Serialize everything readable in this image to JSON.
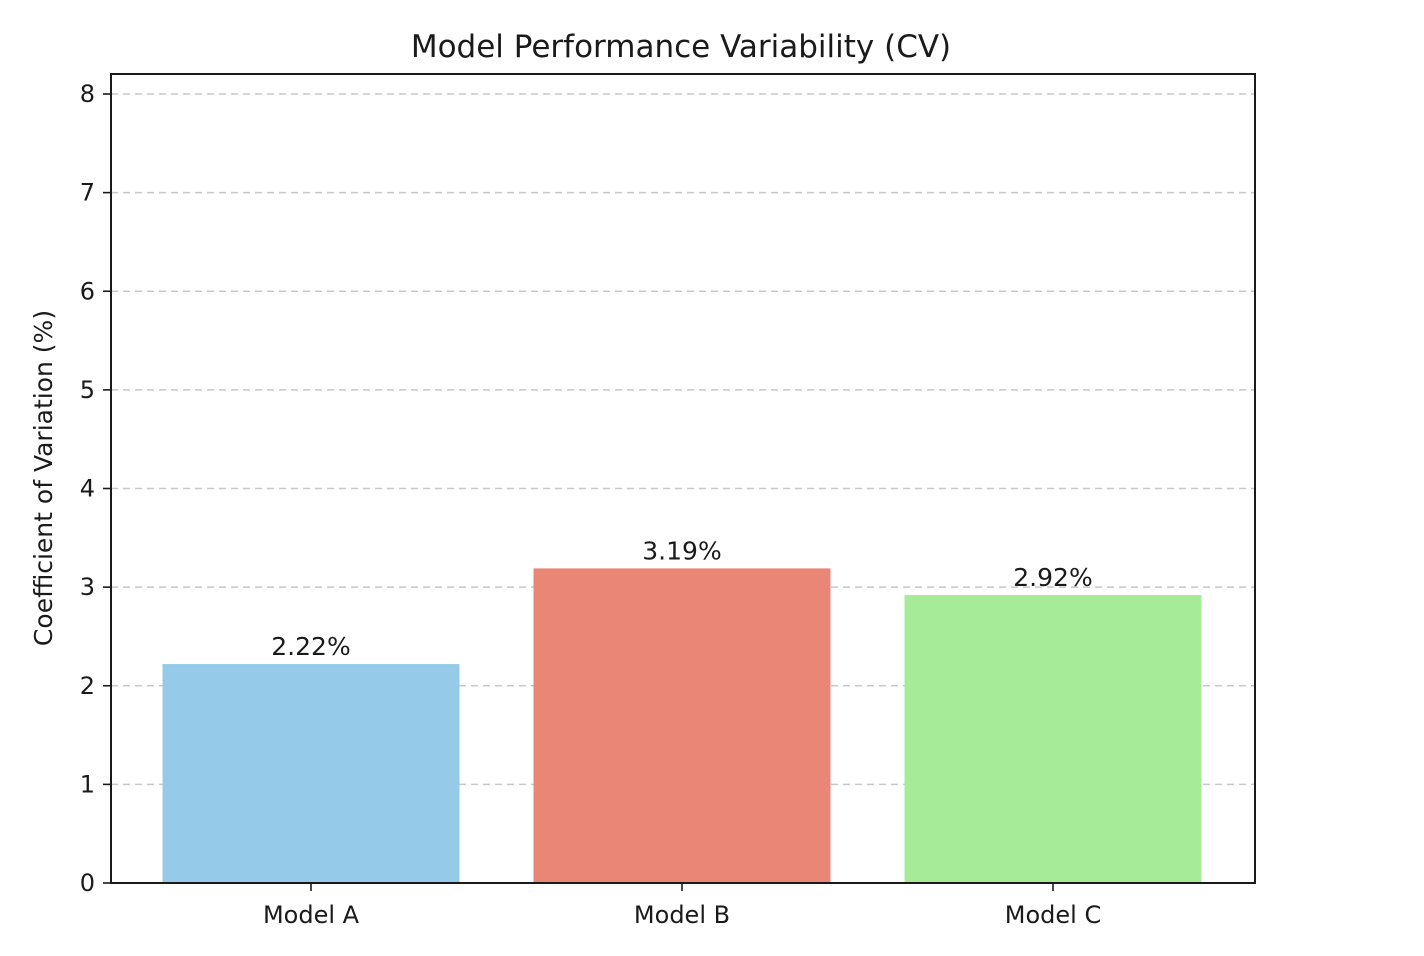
{
  "chart_data": {
    "type": "bar",
    "title": "Model Performance Variability (CV)",
    "xlabel": "",
    "ylabel": "Coefficient of Variation (%)",
    "categories": [
      "Model A",
      "Model B",
      "Model C"
    ],
    "values": [
      2.22,
      3.19,
      2.92
    ],
    "value_labels": [
      "2.22%",
      "3.19%",
      "2.92%"
    ],
    "colors": [
      "#95cbe8",
      "#e98676",
      "#a6ec98"
    ],
    "ylim": [
      0,
      8
    ],
    "yticks": [
      0,
      1,
      2,
      3,
      4,
      5,
      6,
      7,
      8
    ],
    "grid": "y-dashed",
    "legend": "none"
  }
}
